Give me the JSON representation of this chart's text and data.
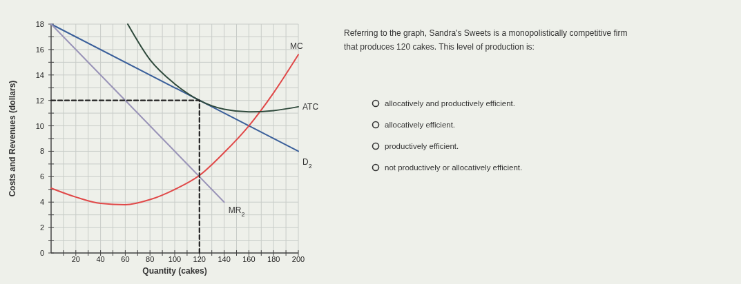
{
  "chart_data": {
    "type": "line",
    "xlabel": "Quantity (cakes)",
    "ylabel": "Costs and Revenues (dollars)",
    "xlim": [
      0,
      200
    ],
    "ylim": [
      0,
      18
    ],
    "xticks": [
      {
        "value": 10,
        "label": null
      },
      20,
      {
        "value": 30,
        "label": null
      },
      40,
      {
        "value": 50,
        "label": null
      },
      60,
      {
        "value": 70,
        "label": null
      },
      80,
      {
        "value": 90,
        "label": null
      },
      100,
      {
        "value": 110,
        "label": null
      },
      120,
      {
        "value": 130,
        "label": null
      },
      140,
      {
        "value": 150,
        "label": null
      },
      160,
      {
        "value": 170,
        "label": null
      },
      180,
      {
        "value": 190,
        "label": null
      },
      200
    ],
    "yticks": [
      0,
      {
        "value": 1,
        "label": null
      },
      2,
      {
        "value": 3,
        "label": null
      },
      4,
      {
        "value": 5,
        "label": null
      },
      6,
      {
        "value": 7,
        "label": null
      },
      8,
      {
        "value": 9,
        "label": null
      },
      10,
      {
        "value": 11,
        "label": null
      },
      12,
      {
        "value": 13,
        "label": null
      },
      14,
      {
        "value": 15,
        "label": null
      },
      16,
      {
        "value": 17,
        "label": null
      },
      18
    ],
    "grid": true,
    "marker": "none",
    "series": [
      {
        "name": "D$_{2}$",
        "color": "#3a5f9a",
        "x": [
          0,
          200
        ],
        "values": [
          18,
          8
        ]
      },
      {
        "name": "MR$_{2}$",
        "color": "#9a94b8",
        "x": [
          0,
          140
        ],
        "values": [
          18,
          4
        ]
      },
      {
        "name": "MC",
        "color": "#e04848",
        "x": [
          0,
          20,
          40,
          60,
          80,
          100,
          120,
          140,
          160,
          180,
          200
        ],
        "values": [
          5.1,
          4.4,
          3.9,
          3.8,
          4.2,
          5,
          6.1,
          7.9,
          10,
          12.6,
          15.6
        ]
      },
      {
        "name": "ATC",
        "color": "#2f4a3c",
        "x": [
          62,
          80,
          100,
          120,
          140,
          160,
          180,
          200
        ],
        "values": [
          18,
          15.2,
          13.3,
          12,
          11.3,
          11.1,
          11.2,
          11.5
        ]
      },
      {
        "color": "#222222",
        "line_style": "dashed",
        "x": [
          0,
          120
        ],
        "values": [
          12,
          12
        ]
      },
      {
        "color": "#222222",
        "line_style": "dashed",
        "x": [
          120,
          120
        ],
        "values": [
          0,
          12
        ]
      }
    ],
    "annotations": [
      "Referring to the graph, Sandra's Sweets is a monopolistically competitive firm that produces 120 cakes. This level of production is:",
      "allocatively and productively efficient.",
      "allocatively efficient.",
      "productively efficient.",
      "not productively or allocatively efficient."
    ]
  }
}
